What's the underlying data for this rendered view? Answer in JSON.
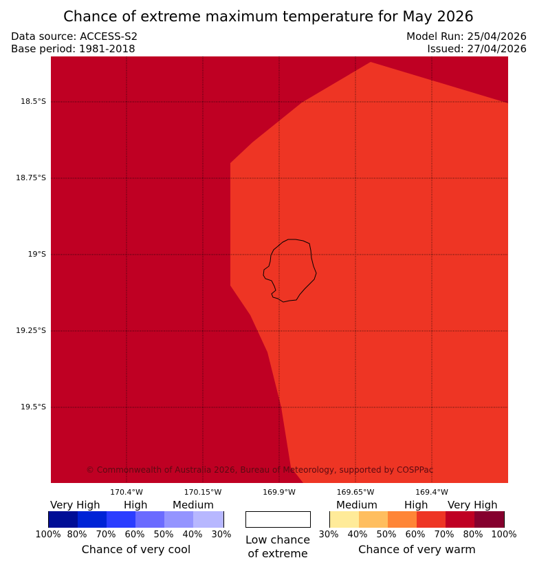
{
  "header": {
    "title": "Chance of extreme maximum temperature for May 2026",
    "data_source": "Data source: ACCESS-S2",
    "base_period": "Base period: 1981-2018",
    "model_run": "Model Run: 25/04/2026",
    "issued": "Issued: 27/04/2026"
  },
  "map": {
    "lat_labels": [
      "18.5°S",
      "18.75°S",
      "19°S",
      "19.25°S",
      "19.5°S"
    ],
    "lon_labels": [
      "170.4°W",
      "170.15°W",
      "169.9°W",
      "169.65°W",
      "169.4°W"
    ],
    "copyright": "© Commonwealth of Australia 2026, Bureau of Meteorology, supported by COSPPac",
    "colors": {
      "background_zone": "#bf0023",
      "inner_zone": "#ee3524",
      "coastline": "#000000"
    }
  },
  "legend": {
    "cool": {
      "categories": [
        "Very High",
        "High",
        "Medium"
      ],
      "percents": [
        "100%",
        "80%",
        "70%",
        "60%",
        "50%",
        "40%",
        "30%"
      ],
      "colors": [
        "#000e96",
        "#0023d6",
        "#2b3dff",
        "#6b6bff",
        "#9494ff",
        "#b7b7ff"
      ],
      "caption": "Chance of very cool"
    },
    "neutral": {
      "color": "#ffffff",
      "caption_line1": "Low chance",
      "caption_line2": "of extreme"
    },
    "warm": {
      "categories": [
        "Medium",
        "High",
        "Very High"
      ],
      "percents": [
        "30%",
        "40%",
        "50%",
        "60%",
        "70%",
        "80%",
        "100%"
      ],
      "colors": [
        "#ffeb99",
        "#ffbe5f",
        "#ff8536",
        "#ee3524",
        "#bf0023",
        "#85002e"
      ],
      "caption": "Chance of very warm"
    }
  }
}
